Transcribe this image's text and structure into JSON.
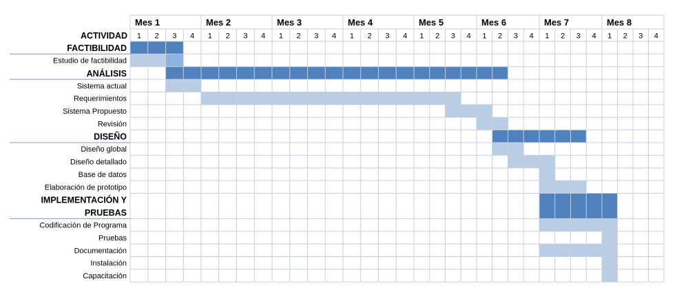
{
  "chart_data": {
    "type": "gantt",
    "header_label": "ACTIVIDAD",
    "months": [
      "Mes 1",
      "Mes 2",
      "Mes 3",
      "Mes 4",
      "Mes 5",
      "Mes 6",
      "Mes 7",
      "Mes 8"
    ],
    "weeks": [
      "1",
      "2",
      "3",
      "4"
    ],
    "colors": {
      "phase_bar": "#4f81bd",
      "task_bar": "#b9cde5",
      "task_bar_alt": "#8db3e2",
      "grid": "#c8d0dc",
      "divider": "#7a9cc6"
    },
    "rows": [
      {
        "label": "FACTIBILIDAD",
        "phase": true,
        "lines": 1,
        "bars": [
          {
            "start": 1,
            "end": 3,
            "style": "phase_bar"
          }
        ]
      },
      {
        "label": "Estudio de factibilidad",
        "phase": false,
        "lines": 1,
        "bars": [
          {
            "start": 1,
            "end": 2,
            "style": "task_bar"
          },
          {
            "start": 3,
            "end": 3,
            "style": "task_bar_alt"
          }
        ]
      },
      {
        "label": "ANÁLISIS",
        "phase": true,
        "lines": 1,
        "bars": [
          {
            "start": 3,
            "end": 22,
            "style": "phase_bar"
          }
        ]
      },
      {
        "label": "Sistema actual",
        "phase": false,
        "lines": 1,
        "bars": [
          {
            "start": 3,
            "end": 4,
            "style": "task_bar"
          }
        ]
      },
      {
        "label": "Requerimientos",
        "phase": false,
        "lines": 1,
        "bars": [
          {
            "start": 5,
            "end": 19,
            "style": "task_bar"
          }
        ]
      },
      {
        "label": "Sistema Propuesto",
        "phase": false,
        "lines": 1,
        "bars": [
          {
            "start": 19,
            "end": 21,
            "style": "task_bar"
          }
        ]
      },
      {
        "label": "Revisión",
        "phase": false,
        "lines": 1,
        "bars": [
          {
            "start": 21,
            "end": 22,
            "style": "task_bar"
          }
        ]
      },
      {
        "label": "DISEÑO",
        "phase": true,
        "lines": 1,
        "bars": [
          {
            "start": 22,
            "end": 27,
            "style": "phase_bar"
          }
        ]
      },
      {
        "label": "Diseño global",
        "phase": false,
        "lines": 1,
        "bars": [
          {
            "start": 22,
            "end": 23,
            "style": "task_bar"
          }
        ]
      },
      {
        "label": "Diseño detallado",
        "phase": false,
        "lines": 1,
        "bars": [
          {
            "start": 23,
            "end": 25,
            "style": "task_bar"
          }
        ]
      },
      {
        "label": "Base de datos",
        "phase": false,
        "lines": 1,
        "bars": [
          {
            "start": 25,
            "end": 25,
            "style": "task_bar"
          }
        ]
      },
      {
        "label": "Elaboración de prototipo",
        "phase": false,
        "lines": 1,
        "bars": [
          {
            "start": 25,
            "end": 27,
            "style": "task_bar"
          }
        ]
      },
      {
        "label": "IMPLEMENTACIÓN Y PRUEBAS",
        "label_lines": [
          "IMPLEMENTACIÓN Y",
          "PRUEBAS"
        ],
        "phase": true,
        "lines": 2,
        "bars": [
          {
            "start": 25,
            "end": 29,
            "style": "phase_bar"
          }
        ]
      },
      {
        "label": "Codificación de Programa",
        "phase": false,
        "lines": 1,
        "bars": [
          {
            "start": 25,
            "end": 29,
            "style": "task_bar"
          }
        ]
      },
      {
        "label": "Pruebas",
        "phase": false,
        "lines": 1,
        "bars": [
          {
            "start": 29,
            "end": 29,
            "style": "task_bar"
          }
        ]
      },
      {
        "label": "Documentación",
        "phase": false,
        "lines": 1,
        "bars": [
          {
            "start": 25,
            "end": 29,
            "style": "task_bar"
          }
        ]
      },
      {
        "label": "Instalación",
        "phase": false,
        "lines": 1,
        "bars": [
          {
            "start": 29,
            "end": 29,
            "style": "task_bar"
          }
        ]
      },
      {
        "label": "Capacitación",
        "phase": false,
        "lines": 1,
        "bars": [
          {
            "start": 29,
            "end": 29,
            "style": "task_bar"
          }
        ]
      }
    ]
  }
}
